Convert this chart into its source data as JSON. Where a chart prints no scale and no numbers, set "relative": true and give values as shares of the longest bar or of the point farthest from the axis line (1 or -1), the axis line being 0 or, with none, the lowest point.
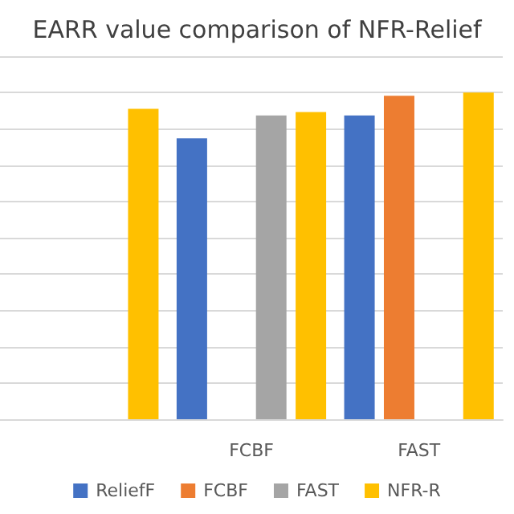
{
  "chart_data": {
    "type": "bar",
    "title": "EARR value comparison of NFR-Relief",
    "categories": [
      null,
      "FCBF",
      "FAST"
    ],
    "relative": true,
    "grid": "y",
    "legend": "bottom",
    "series": [
      {
        "name": "ReliefF",
        "color": "#4472c4",
        "values": [
          null,
          0.86,
          0.93
        ]
      },
      {
        "name": "FCBF",
        "color": "#ed7d31",
        "values": [
          null,
          null,
          0.99
        ]
      },
      {
        "name": "FAST",
        "color": "#a5a5a5",
        "values": [
          null,
          0.93,
          null
        ]
      },
      {
        "name": "NFR-R",
        "color": "#ffc000",
        "values": [
          0.95,
          0.94,
          1
        ]
      }
    ]
  }
}
